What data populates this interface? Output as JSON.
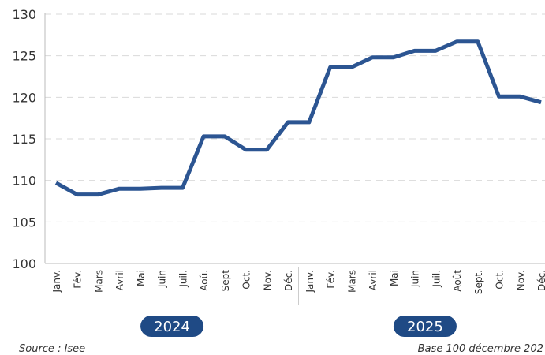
{
  "chart_data": {
    "type": "line",
    "categories": [
      "Janv.",
      "Fév.",
      "Mars",
      "Avril",
      "Mai",
      "Juin",
      "Juil.",
      "Aoû.",
      "Sept",
      "Oct.",
      "Nov.",
      "Déc.",
      "Janv.",
      "Fév.",
      "Mars",
      "Avril",
      "Mai",
      "Juin",
      "Juil.",
      "Août",
      "Sept.",
      "Oct.",
      "Nov.",
      "Déc."
    ],
    "series": [
      {
        "color": "#2c5592",
        "values": [
          109.7,
          108.3,
          108.3,
          109.0,
          109.0,
          109.1,
          109.1,
          115.3,
          115.3,
          113.7,
          113.7,
          117.0,
          117.0,
          123.6,
          123.6,
          124.8,
          124.8,
          125.6,
          125.6,
          126.7,
          126.7,
          120.1,
          120.1,
          119.4
        ]
      }
    ],
    "groups": [
      "2024",
      "2025"
    ],
    "ylim": [
      100,
      130
    ],
    "yticks": [
      100,
      105,
      110,
      115,
      120,
      125,
      130
    ],
    "grid": true,
    "source": "Source : Isee",
    "note": "Base 100 décembre 202"
  }
}
